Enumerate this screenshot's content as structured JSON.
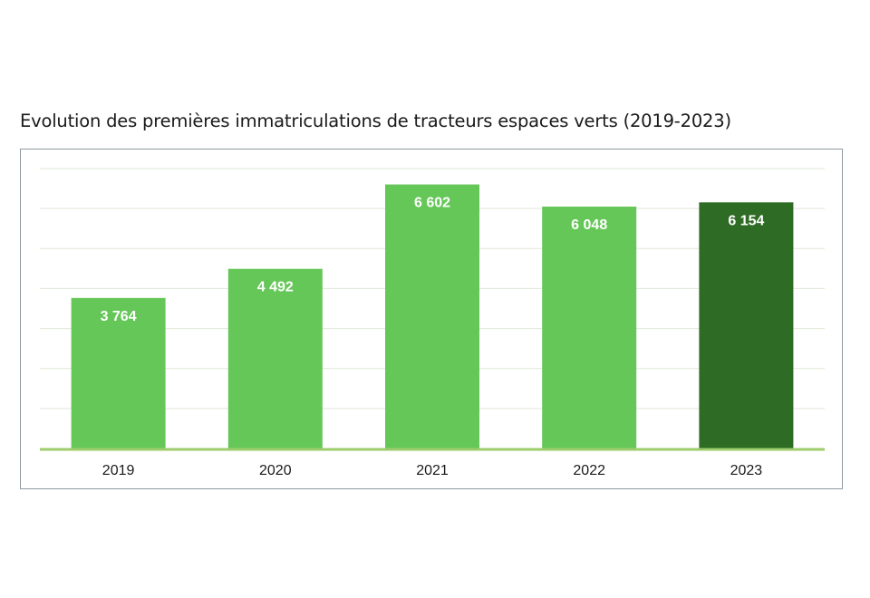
{
  "title": "Evolution des premières immatriculations de tracteurs espaces verts (2019-2023)",
  "colors": {
    "bar": "#66c759",
    "highlight": "#2e6b24",
    "grid": "#dfe8d6",
    "baseline": "#9ccc6c"
  },
  "chart_data": {
    "type": "bar",
    "title": "Evolution des premières immatriculations de tracteurs espaces verts (2019-2023)",
    "categories": [
      "2019",
      "2020",
      "2021",
      "2022",
      "2023"
    ],
    "values": [
      3764,
      4492,
      6602,
      6048,
      6154
    ],
    "data_labels": [
      "3 764",
      "4 492",
      "6  602",
      "6 048",
      "6 154"
    ],
    "highlight_index": 4,
    "xlabel": "",
    "ylabel": "",
    "ylim": [
      0,
      7000
    ],
    "grid": true,
    "legend": "none"
  }
}
